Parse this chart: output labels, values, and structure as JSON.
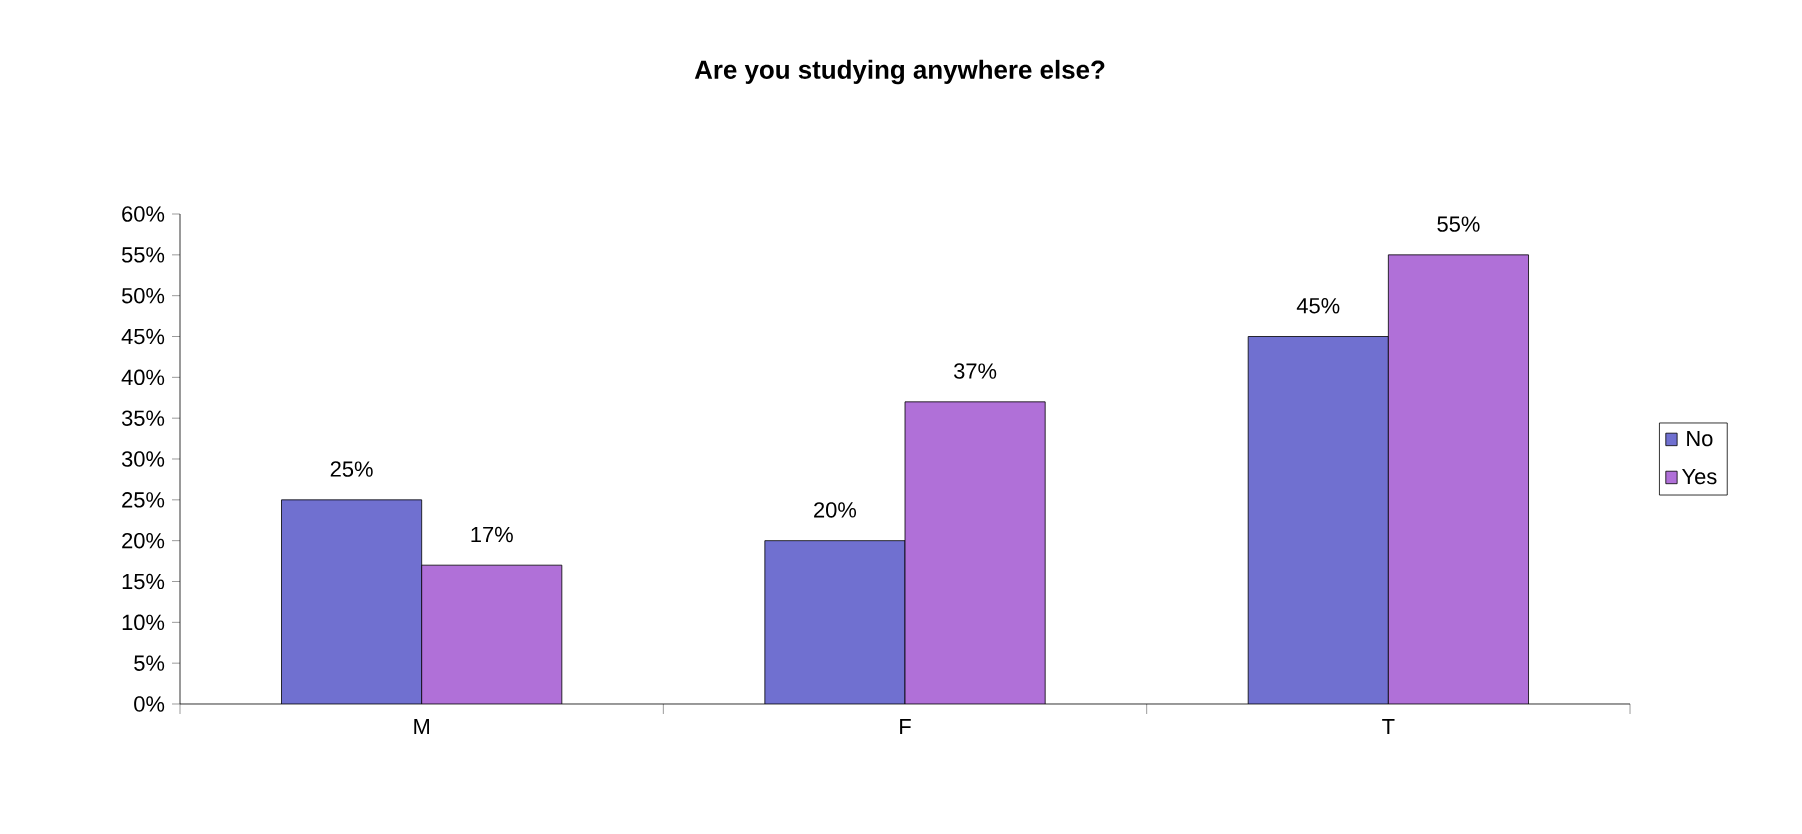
{
  "chart_data": {
    "type": "bar",
    "title": "Are you studying anywhere else?",
    "categories": [
      "M",
      "F",
      "T"
    ],
    "series": [
      {
        "name": "No",
        "color": "#7070d0",
        "values": [
          25,
          20,
          45
        ],
        "value_labels": [
          "25%",
          "20%",
          "45%"
        ]
      },
      {
        "name": "Yes",
        "color": "#b070d8",
        "values": [
          17,
          37,
          55
        ],
        "value_labels": [
          "17%",
          "37%",
          "55%"
        ]
      }
    ],
    "ylim": [
      0,
      60
    ],
    "yticks": [
      {
        "value": 0,
        "label": "0%"
      },
      {
        "value": 5,
        "label": "5%"
      },
      {
        "value": 10,
        "label": "10%"
      },
      {
        "value": 15,
        "label": "15%"
      },
      {
        "value": 20,
        "label": "20%"
      },
      {
        "value": 25,
        "label": "25%"
      },
      {
        "value": 30,
        "label": "30%"
      },
      {
        "value": 35,
        "label": "35%"
      },
      {
        "value": 40,
        "label": "40%"
      },
      {
        "value": 45,
        "label": "45%"
      },
      {
        "value": 50,
        "label": "50%"
      },
      {
        "value": 55,
        "label": "55%"
      },
      {
        "value": 60,
        "label": "60%"
      }
    ],
    "legend": "right",
    "grid": false
  }
}
